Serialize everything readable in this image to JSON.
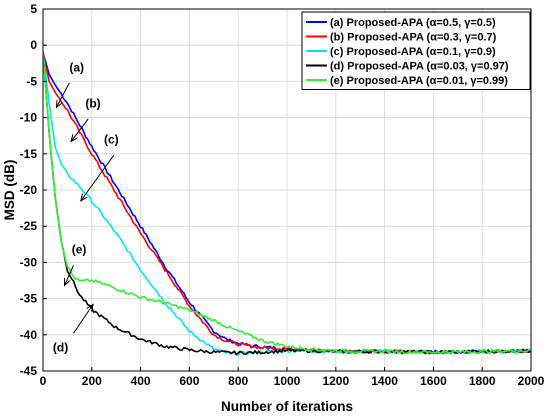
{
  "chart_data": {
    "type": "line",
    "title": "",
    "xlabel": "Number of iterations",
    "ylabel": "MSD (dB)",
    "xlim": [
      0,
      2000
    ],
    "ylim": [
      -45,
      5
    ],
    "xticks": [
      0,
      200,
      400,
      600,
      800,
      1000,
      1200,
      1400,
      1600,
      1800,
      2000
    ],
    "yticks": [
      5,
      0,
      -5,
      -10,
      -15,
      -20,
      -25,
      -30,
      -35,
      -40,
      -45
    ],
    "grid": true,
    "legend_position": "top-right",
    "series": [
      {
        "name": "(a) Proposed-APA (α=0.5, γ=0.5)",
        "color": "#0000ff",
        "x": [
          0,
          25,
          50,
          100,
          150,
          200,
          300,
          400,
          500,
          600,
          700,
          750,
          800,
          850,
          900,
          1000,
          1100,
          1200,
          1400,
          1600,
          1800,
          2000
        ],
        "y": [
          -1,
          -4,
          -5.5,
          -8,
          -11,
          -14,
          -19.5,
          -25,
          -30.5,
          -35.5,
          -39.5,
          -40.6,
          -41.2,
          -41.5,
          -41.7,
          -41.9,
          -42.1,
          -42.3,
          -42.3,
          -42.4,
          -42.3,
          -42.2
        ]
      },
      {
        "name": "(b) Proposed-APA (α=0.3, γ=0.7)",
        "color": "#ff0000",
        "x": [
          0,
          25,
          50,
          100,
          150,
          200,
          300,
          400,
          500,
          600,
          700,
          750,
          800,
          900,
          1000,
          1100,
          1200,
          1400,
          1600,
          1800,
          2000
        ],
        "y": [
          -1,
          -5,
          -6.5,
          -9,
          -12,
          -15,
          -20.5,
          -26,
          -31,
          -36,
          -40,
          -40.8,
          -41.3,
          -41.8,
          -41.9,
          -42.1,
          -42.3,
          -42.3,
          -42.4,
          -42.3,
          -42.2
        ]
      },
      {
        "name": "(c) Proposed-APA (α=0.1, γ=0.9)",
        "color": "#00e5ee",
        "x": [
          0,
          25,
          50,
          75,
          100,
          150,
          200,
          300,
          400,
          500,
          600,
          700,
          750,
          800,
          900,
          1000,
          1100,
          1200,
          1400,
          1600,
          1800,
          2000
        ],
        "y": [
          -1,
          -8,
          -14,
          -16.5,
          -17.8,
          -19.5,
          -21.5,
          -26,
          -31,
          -35.5,
          -39.5,
          -42,
          -42.5,
          -42.6,
          -42.4,
          -42.2,
          -42.2,
          -42.3,
          -42.3,
          -42.4,
          -42.3,
          -42.2
        ]
      },
      {
        "name": "(d) Proposed-APA (α=0.03, γ=0.97)",
        "color": "#000000",
        "x": [
          0,
          25,
          50,
          75,
          100,
          150,
          200,
          300,
          400,
          500,
          600,
          700,
          800,
          900,
          1000,
          1100,
          1200,
          1400,
          1600,
          1800,
          2000
        ],
        "y": [
          -1,
          -12,
          -21,
          -27,
          -31,
          -34.5,
          -36.5,
          -39,
          -40.6,
          -41.6,
          -42.1,
          -42.4,
          -42.5,
          -42.4,
          -42.2,
          -42.2,
          -42.3,
          -42.3,
          -42.4,
          -42.3,
          -42.2
        ]
      },
      {
        "name": "(e) Proposed-APA (α=0.01, γ=0.99)",
        "color": "#33ee33",
        "x": [
          0,
          25,
          50,
          75,
          100,
          125,
          150,
          200,
          250,
          300,
          400,
          500,
          600,
          700,
          750,
          800,
          900,
          1000,
          1100,
          1200,
          1400,
          1600,
          1800,
          2000
        ],
        "y": [
          -1,
          -12,
          -21,
          -27,
          -30.5,
          -32,
          -32.6,
          -32.5,
          -33,
          -33.6,
          -34.8,
          -35.6,
          -36.6,
          -38,
          -38.8,
          -39.5,
          -40.8,
          -41.6,
          -42,
          -42.2,
          -42.3,
          -42.4,
          -42.3,
          -42.2
        ]
      }
    ],
    "annotations": [
      {
        "label": "(a)",
        "text_at": [
          138,
          -3.6
        ],
        "arrow_from": [
          108,
          -5.2
        ],
        "arrow_to": [
          55,
          -8.6
        ]
      },
      {
        "label": "(b)",
        "text_at": [
          205,
          -8.6
        ],
        "arrow_from": [
          185,
          -10.2
        ],
        "arrow_to": [
          115,
          -13.3
        ]
      },
      {
        "label": "(c)",
        "text_at": [
          280,
          -13.6
        ],
        "arrow_from": [
          290,
          -15.2
        ],
        "arrow_to": [
          95,
          -32.2
        ],
        "arrow_to_override": [
          155,
          -21.5
        ]
      },
      {
        "label": "(e)",
        "text_at": [
          148,
          -28.8
        ],
        "arrow_from": [
          125,
          -30.4
        ],
        "arrow_to": [
          88,
          -33.2
        ]
      },
      {
        "label": "(d)",
        "text_at": [
          72,
          -42.3
        ],
        "arrow_from": [
          125,
          -39.8
        ],
        "arrow_to": [
          205,
          -35.8
        ]
      }
    ]
  }
}
